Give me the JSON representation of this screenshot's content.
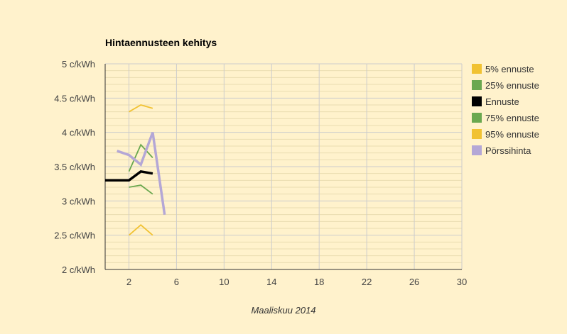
{
  "chart_data": {
    "type": "line",
    "title": "Hintaennusteen kehitys",
    "xlabel": "Maaliskuu 2014",
    "ylabel": "",
    "xlim": [
      0,
      30
    ],
    "ylim": [
      2,
      5
    ],
    "x_ticks": [
      2,
      6,
      10,
      14,
      18,
      22,
      26,
      30
    ],
    "x_tick_labels": [
      "2",
      "6",
      "10",
      "14",
      "18",
      "22",
      "26",
      "30"
    ],
    "y_ticks": [
      2,
      2.5,
      3,
      3.5,
      4,
      4.5,
      5
    ],
    "y_tick_labels": [
      "2 c/kWh",
      "2.5 c/kWh",
      "3 c/kWh",
      "3.5 c/kWh",
      "4 c/kWh",
      "4.5 c/kWh",
      "5 c/kWh"
    ],
    "grid": true,
    "legend_position": "right",
    "background_color": "#fff2cc",
    "series": [
      {
        "name": "5% ennuste",
        "color": "#f1c232",
        "points": [
          [
            2,
            2.5
          ],
          [
            3,
            2.65
          ],
          [
            4,
            2.5
          ]
        ]
      },
      {
        "name": "25% ennuste",
        "color": "#6aa84f",
        "points": [
          [
            2,
            3.2
          ],
          [
            3,
            3.23
          ],
          [
            4,
            3.1
          ]
        ]
      },
      {
        "name": "Ennuste",
        "color": "#000000",
        "points": [
          [
            0,
            3.3
          ],
          [
            1,
            3.3
          ],
          [
            2,
            3.3
          ],
          [
            3,
            3.43
          ],
          [
            4,
            3.4
          ]
        ]
      },
      {
        "name": "75% ennuste",
        "color": "#6aa84f",
        "points": [
          [
            2,
            3.43
          ],
          [
            3,
            3.82
          ],
          [
            4,
            3.63
          ]
        ]
      },
      {
        "name": "95% ennuste",
        "color": "#f1c232",
        "points": [
          [
            2,
            4.3
          ],
          [
            3,
            4.4
          ],
          [
            4,
            4.35
          ]
        ]
      },
      {
        "name": "Pörssihinta",
        "color": "#b4a7d6",
        "points": [
          [
            1,
            3.73
          ],
          [
            2,
            3.67
          ],
          [
            3,
            3.53
          ],
          [
            4,
            4.0
          ],
          [
            5,
            2.8
          ]
        ]
      }
    ]
  }
}
